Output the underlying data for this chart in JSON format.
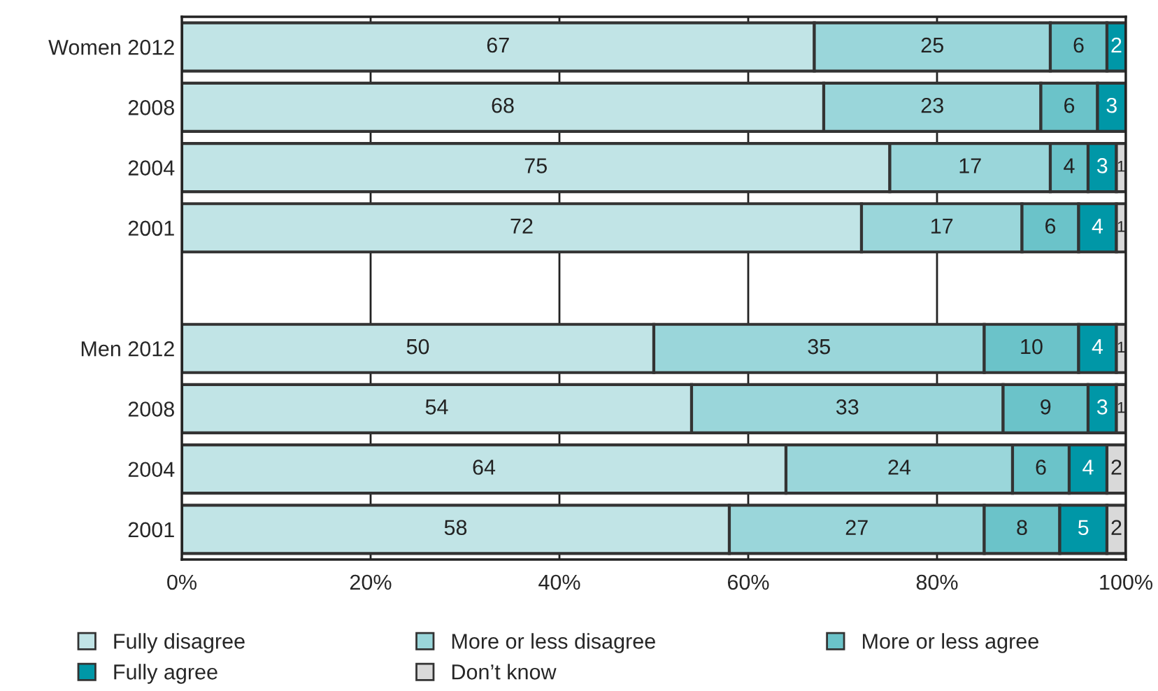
{
  "chart_data": {
    "type": "bar",
    "orientation": "horizontal",
    "stacked": true,
    "data_labels": true,
    "grid": "x",
    "legend": "bottom",
    "categories": [
      "Women 2012",
      "2008",
      "2004",
      "2001",
      null,
      "Men 2012",
      "2008",
      "2004",
      "2001"
    ],
    "series": [
      {
        "name": "Fully disagree",
        "color": "#c1e4e6",
        "values": [
          67,
          68,
          75,
          72,
          null,
          50,
          54,
          64,
          58
        ]
      },
      {
        "name": "More or less disagree",
        "color": "#9ad6da",
        "values": [
          25,
          23,
          17,
          17,
          null,
          35,
          33,
          24,
          27
        ]
      },
      {
        "name": "More or less agree",
        "color": "#6bc3c9",
        "values": [
          6,
          6,
          4,
          6,
          null,
          10,
          9,
          6,
          8
        ]
      },
      {
        "name": "Fully agree",
        "color": "#0097a7",
        "values": [
          2,
          3,
          3,
          4,
          null,
          4,
          3,
          4,
          5
        ]
      },
      {
        "name": "Don’t know",
        "color": "#d9d9d9",
        "values": [
          null,
          null,
          1,
          1,
          null,
          1,
          1,
          2,
          2
        ]
      }
    ],
    "xlim": [
      0,
      100
    ],
    "xticks": [
      {
        "value": 0,
        "label": "0%"
      },
      {
        "value": 20,
        "label": "20%"
      },
      {
        "value": 40,
        "label": "40%"
      },
      {
        "value": 60,
        "label": "60%"
      },
      {
        "value": 80,
        "label": "80%"
      },
      {
        "value": 100,
        "label": "100%"
      }
    ]
  }
}
